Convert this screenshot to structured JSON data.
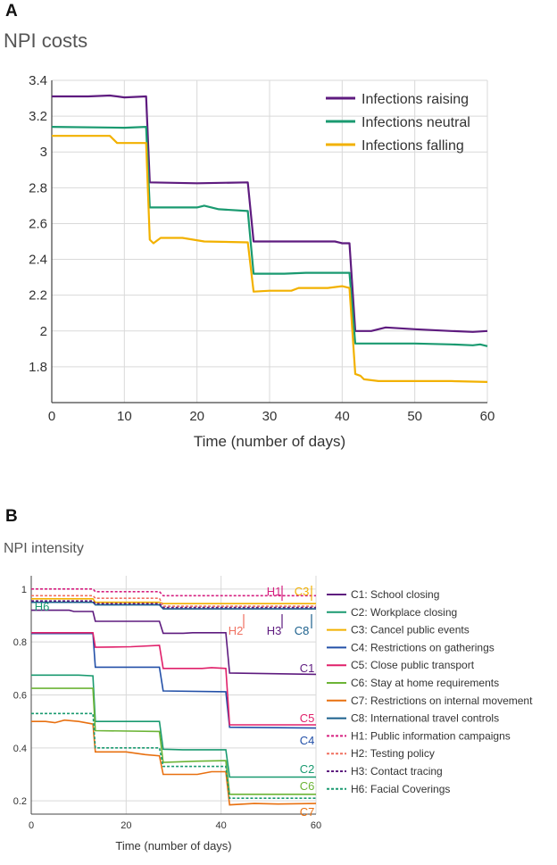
{
  "panels": {
    "a": {
      "letter": "A",
      "title": "NPI costs"
    },
    "b": {
      "letter": "B",
      "title": "NPI intensity"
    }
  },
  "chart_data": [
    {
      "type": "line",
      "title": "NPI costs",
      "xlabel": "Time (number of days)",
      "ylabel": "",
      "xlim": [
        0,
        60
      ],
      "ylim": [
        1.6,
        3.4
      ],
      "xticks": [
        0,
        10,
        20,
        30,
        40,
        50,
        60
      ],
      "yticks": [
        1.8,
        2,
        2.2,
        2.4,
        2.6,
        2.8,
        3,
        3.2,
        3.4
      ],
      "ytick_labels": [
        "1.8",
        "2",
        "2.2",
        "2.4",
        "2.6",
        "2.8",
        "3",
        "3.2",
        "3.4"
      ],
      "grid": true,
      "legend_position": "top-right",
      "series": [
        {
          "name": "Infections raising",
          "color": "#5e1b7f",
          "points": [
            [
              0,
              3.31
            ],
            [
              5,
              3.31
            ],
            [
              8,
              3.315
            ],
            [
              9,
              3.31
            ],
            [
              10,
              3.305
            ],
            [
              13,
              3.31
            ],
            [
              13.5,
              2.83
            ],
            [
              20,
              2.825
            ],
            [
              27,
              2.83
            ],
            [
              27.8,
              2.5
            ],
            [
              30,
              2.5
            ],
            [
              39,
              2.5
            ],
            [
              40,
              2.49
            ],
            [
              41,
              2.49
            ],
            [
              41.8,
              2.0
            ],
            [
              44,
              2.0
            ],
            [
              46,
              2.02
            ],
            [
              50,
              2.01
            ],
            [
              55,
              2.0
            ],
            [
              58,
              1.995
            ],
            [
              60,
              2.0
            ]
          ]
        },
        {
          "name": "Infections neutral",
          "color": "#1a9a70",
          "points": [
            [
              0,
              3.14
            ],
            [
              10,
              3.135
            ],
            [
              13,
              3.14
            ],
            [
              13.5,
              2.69
            ],
            [
              16,
              2.69
            ],
            [
              20,
              2.69
            ],
            [
              21,
              2.7
            ],
            [
              23,
              2.68
            ],
            [
              27,
              2.67
            ],
            [
              27.8,
              2.32
            ],
            [
              32,
              2.32
            ],
            [
              35,
              2.325
            ],
            [
              41,
              2.325
            ],
            [
              41.8,
              1.93
            ],
            [
              45,
              1.93
            ],
            [
              50,
              1.93
            ],
            [
              55,
              1.925
            ],
            [
              58,
              1.92
            ],
            [
              59,
              1.925
            ],
            [
              60,
              1.915
            ]
          ]
        },
        {
          "name": "Infections falling",
          "color": "#f2b100",
          "points": [
            [
              0,
              3.09
            ],
            [
              8,
              3.09
            ],
            [
              9,
              3.05
            ],
            [
              13,
              3.05
            ],
            [
              13.5,
              2.51
            ],
            [
              14,
              2.49
            ],
            [
              15,
              2.52
            ],
            [
              18,
              2.52
            ],
            [
              21,
              2.5
            ],
            [
              27,
              2.495
            ],
            [
              27.8,
              2.22
            ],
            [
              30,
              2.225
            ],
            [
              33,
              2.225
            ],
            [
              34,
              2.24
            ],
            [
              38,
              2.24
            ],
            [
              40,
              2.25
            ],
            [
              41,
              2.24
            ],
            [
              41.8,
              1.76
            ],
            [
              42.5,
              1.75
            ],
            [
              43,
              1.73
            ],
            [
              45,
              1.72
            ],
            [
              50,
              1.72
            ],
            [
              55,
              1.72
            ],
            [
              60,
              1.715
            ]
          ]
        }
      ]
    },
    {
      "type": "line",
      "title": "NPI intensity",
      "xlabel": "Time (number of days)",
      "ylabel": "",
      "xlim": [
        0,
        60
      ],
      "ylim": [
        0.15,
        1.05
      ],
      "xticks": [
        0,
        20,
        40,
        60
      ],
      "yticks": [
        0.2,
        0.4,
        0.6,
        0.8,
        1
      ],
      "ytick_labels": [
        "0.2",
        "0.4",
        "0.6",
        "0.8",
        "1"
      ],
      "grid": true,
      "legend_position": "right",
      "series": [
        {
          "name": "C1: School closing",
          "label": "C1",
          "color": "#5e1b7f",
          "dashed": false,
          "points": [
            [
              0,
              0.92
            ],
            [
              8,
              0.92
            ],
            [
              9,
              0.915
            ],
            [
              13,
              0.915
            ],
            [
              13.5,
              0.878
            ],
            [
              27,
              0.878
            ],
            [
              27.8,
              0.833
            ],
            [
              32,
              0.833
            ],
            [
              34,
              0.835
            ],
            [
              41,
              0.835
            ],
            [
              41.8,
              0.683
            ],
            [
              60,
              0.678
            ]
          ]
        },
        {
          "name": "C2: Workplace closing",
          "label": "C2",
          "color": "#1a9a70",
          "dashed": false,
          "points": [
            [
              0,
              0.675
            ],
            [
              10,
              0.675
            ],
            [
              13,
              0.672
            ],
            [
              13.5,
              0.5
            ],
            [
              27,
              0.5
            ],
            [
              27.8,
              0.395
            ],
            [
              32,
              0.393
            ],
            [
              41,
              0.393
            ],
            [
              41.8,
              0.29
            ],
            [
              60,
              0.29
            ]
          ]
        },
        {
          "name": "C3: Cancel public events",
          "label": "C3",
          "color": "#f2b100",
          "dashed": false,
          "points": [
            [
              0,
              0.963
            ],
            [
              13,
              0.963
            ],
            [
              13.5,
              0.95
            ],
            [
              27,
              0.95
            ],
            [
              27.8,
              0.945
            ],
            [
              60,
              0.945
            ]
          ]
        },
        {
          "name": "C4: Restrictions on gatherings",
          "label": "C4",
          "color": "#2350a8",
          "dashed": false,
          "points": [
            [
              0,
              0.832
            ],
            [
              13,
              0.832
            ],
            [
              13.5,
              0.705
            ],
            [
              27,
              0.705
            ],
            [
              27.8,
              0.615
            ],
            [
              41,
              0.612
            ],
            [
              41.8,
              0.478
            ],
            [
              60,
              0.475
            ]
          ]
        },
        {
          "name": "C5: Close public transport",
          "label": "C5",
          "color": "#e0206a",
          "dashed": false,
          "points": [
            [
              0,
              0.835
            ],
            [
              13,
              0.835
            ],
            [
              13.5,
              0.78
            ],
            [
              21,
              0.782
            ],
            [
              27,
              0.787
            ],
            [
              27.8,
              0.7
            ],
            [
              36,
              0.7
            ],
            [
              38,
              0.703
            ],
            [
              41,
              0.7
            ],
            [
              41.8,
              0.487
            ],
            [
              60,
              0.487
            ]
          ]
        },
        {
          "name": "C6: Stay at home requirements",
          "label": "C6",
          "color": "#6cb436",
          "dashed": false,
          "points": [
            [
              0,
              0.625
            ],
            [
              13,
              0.625
            ],
            [
              13.5,
              0.465
            ],
            [
              27,
              0.462
            ],
            [
              27.8,
              0.345
            ],
            [
              35,
              0.35
            ],
            [
              41,
              0.352
            ],
            [
              41.8,
              0.225
            ],
            [
              60,
              0.225
            ]
          ]
        },
        {
          "name": "C7: Restrictions on internal movement",
          "label": "C7",
          "color": "#e87010",
          "dashed": false,
          "points": [
            [
              0,
              0.5
            ],
            [
              3,
              0.5
            ],
            [
              5,
              0.495
            ],
            [
              7,
              0.505
            ],
            [
              10,
              0.5
            ],
            [
              13,
              0.49
            ],
            [
              13.5,
              0.385
            ],
            [
              20,
              0.385
            ],
            [
              24,
              0.375
            ],
            [
              27,
              0.37
            ],
            [
              27.8,
              0.3
            ],
            [
              35,
              0.3
            ],
            [
              38,
              0.31
            ],
            [
              41,
              0.31
            ],
            [
              41.8,
              0.185
            ],
            [
              47,
              0.19
            ],
            [
              52,
              0.188
            ],
            [
              60,
              0.19
            ]
          ]
        },
        {
          "name": "C8: International travel controls",
          "label": "C8",
          "color": "#1a5f8c",
          "dashed": false,
          "points": [
            [
              0,
              0.95
            ],
            [
              13,
              0.95
            ],
            [
              13.5,
              0.94
            ],
            [
              27,
              0.94
            ],
            [
              27.8,
              0.925
            ],
            [
              60,
              0.925
            ]
          ]
        },
        {
          "name": "H1: Public information campaigns",
          "label": "H1",
          "color": "#d62080",
          "dashed": true,
          "points": [
            [
              0,
              1.0
            ],
            [
              13,
              1.0
            ],
            [
              13.5,
              0.99
            ],
            [
              27,
              0.99
            ],
            [
              27.8,
              0.975
            ],
            [
              60,
              0.975
            ]
          ]
        },
        {
          "name": "H2: Testing policy",
          "label": "H2",
          "color": "#f07060",
          "dashed": true,
          "points": [
            [
              0,
              0.975
            ],
            [
              13,
              0.975
            ],
            [
              13.5,
              0.965
            ],
            [
              27,
              0.965
            ],
            [
              27.8,
              0.935
            ],
            [
              60,
              0.935
            ]
          ]
        },
        {
          "name": "H3: Contact tracing",
          "label": "H3",
          "color": "#5e1b7f",
          "dashed": true,
          "points": [
            [
              0,
              0.955
            ],
            [
              13,
              0.955
            ],
            [
              13.5,
              0.945
            ],
            [
              27,
              0.945
            ],
            [
              27.8,
              0.93
            ],
            [
              60,
              0.93
            ]
          ]
        },
        {
          "name": "H6: Facial Coverings",
          "label": "H6",
          "color": "#1a9a70",
          "dashed": true,
          "points": [
            [
              0,
              0.53
            ],
            [
              13,
              0.53
            ],
            [
              13.5,
              0.4
            ],
            [
              27,
              0.4
            ],
            [
              27.8,
              0.33
            ],
            [
              41,
              0.33
            ],
            [
              41.8,
              0.21
            ],
            [
              60,
              0.21
            ]
          ]
        }
      ]
    }
  ]
}
